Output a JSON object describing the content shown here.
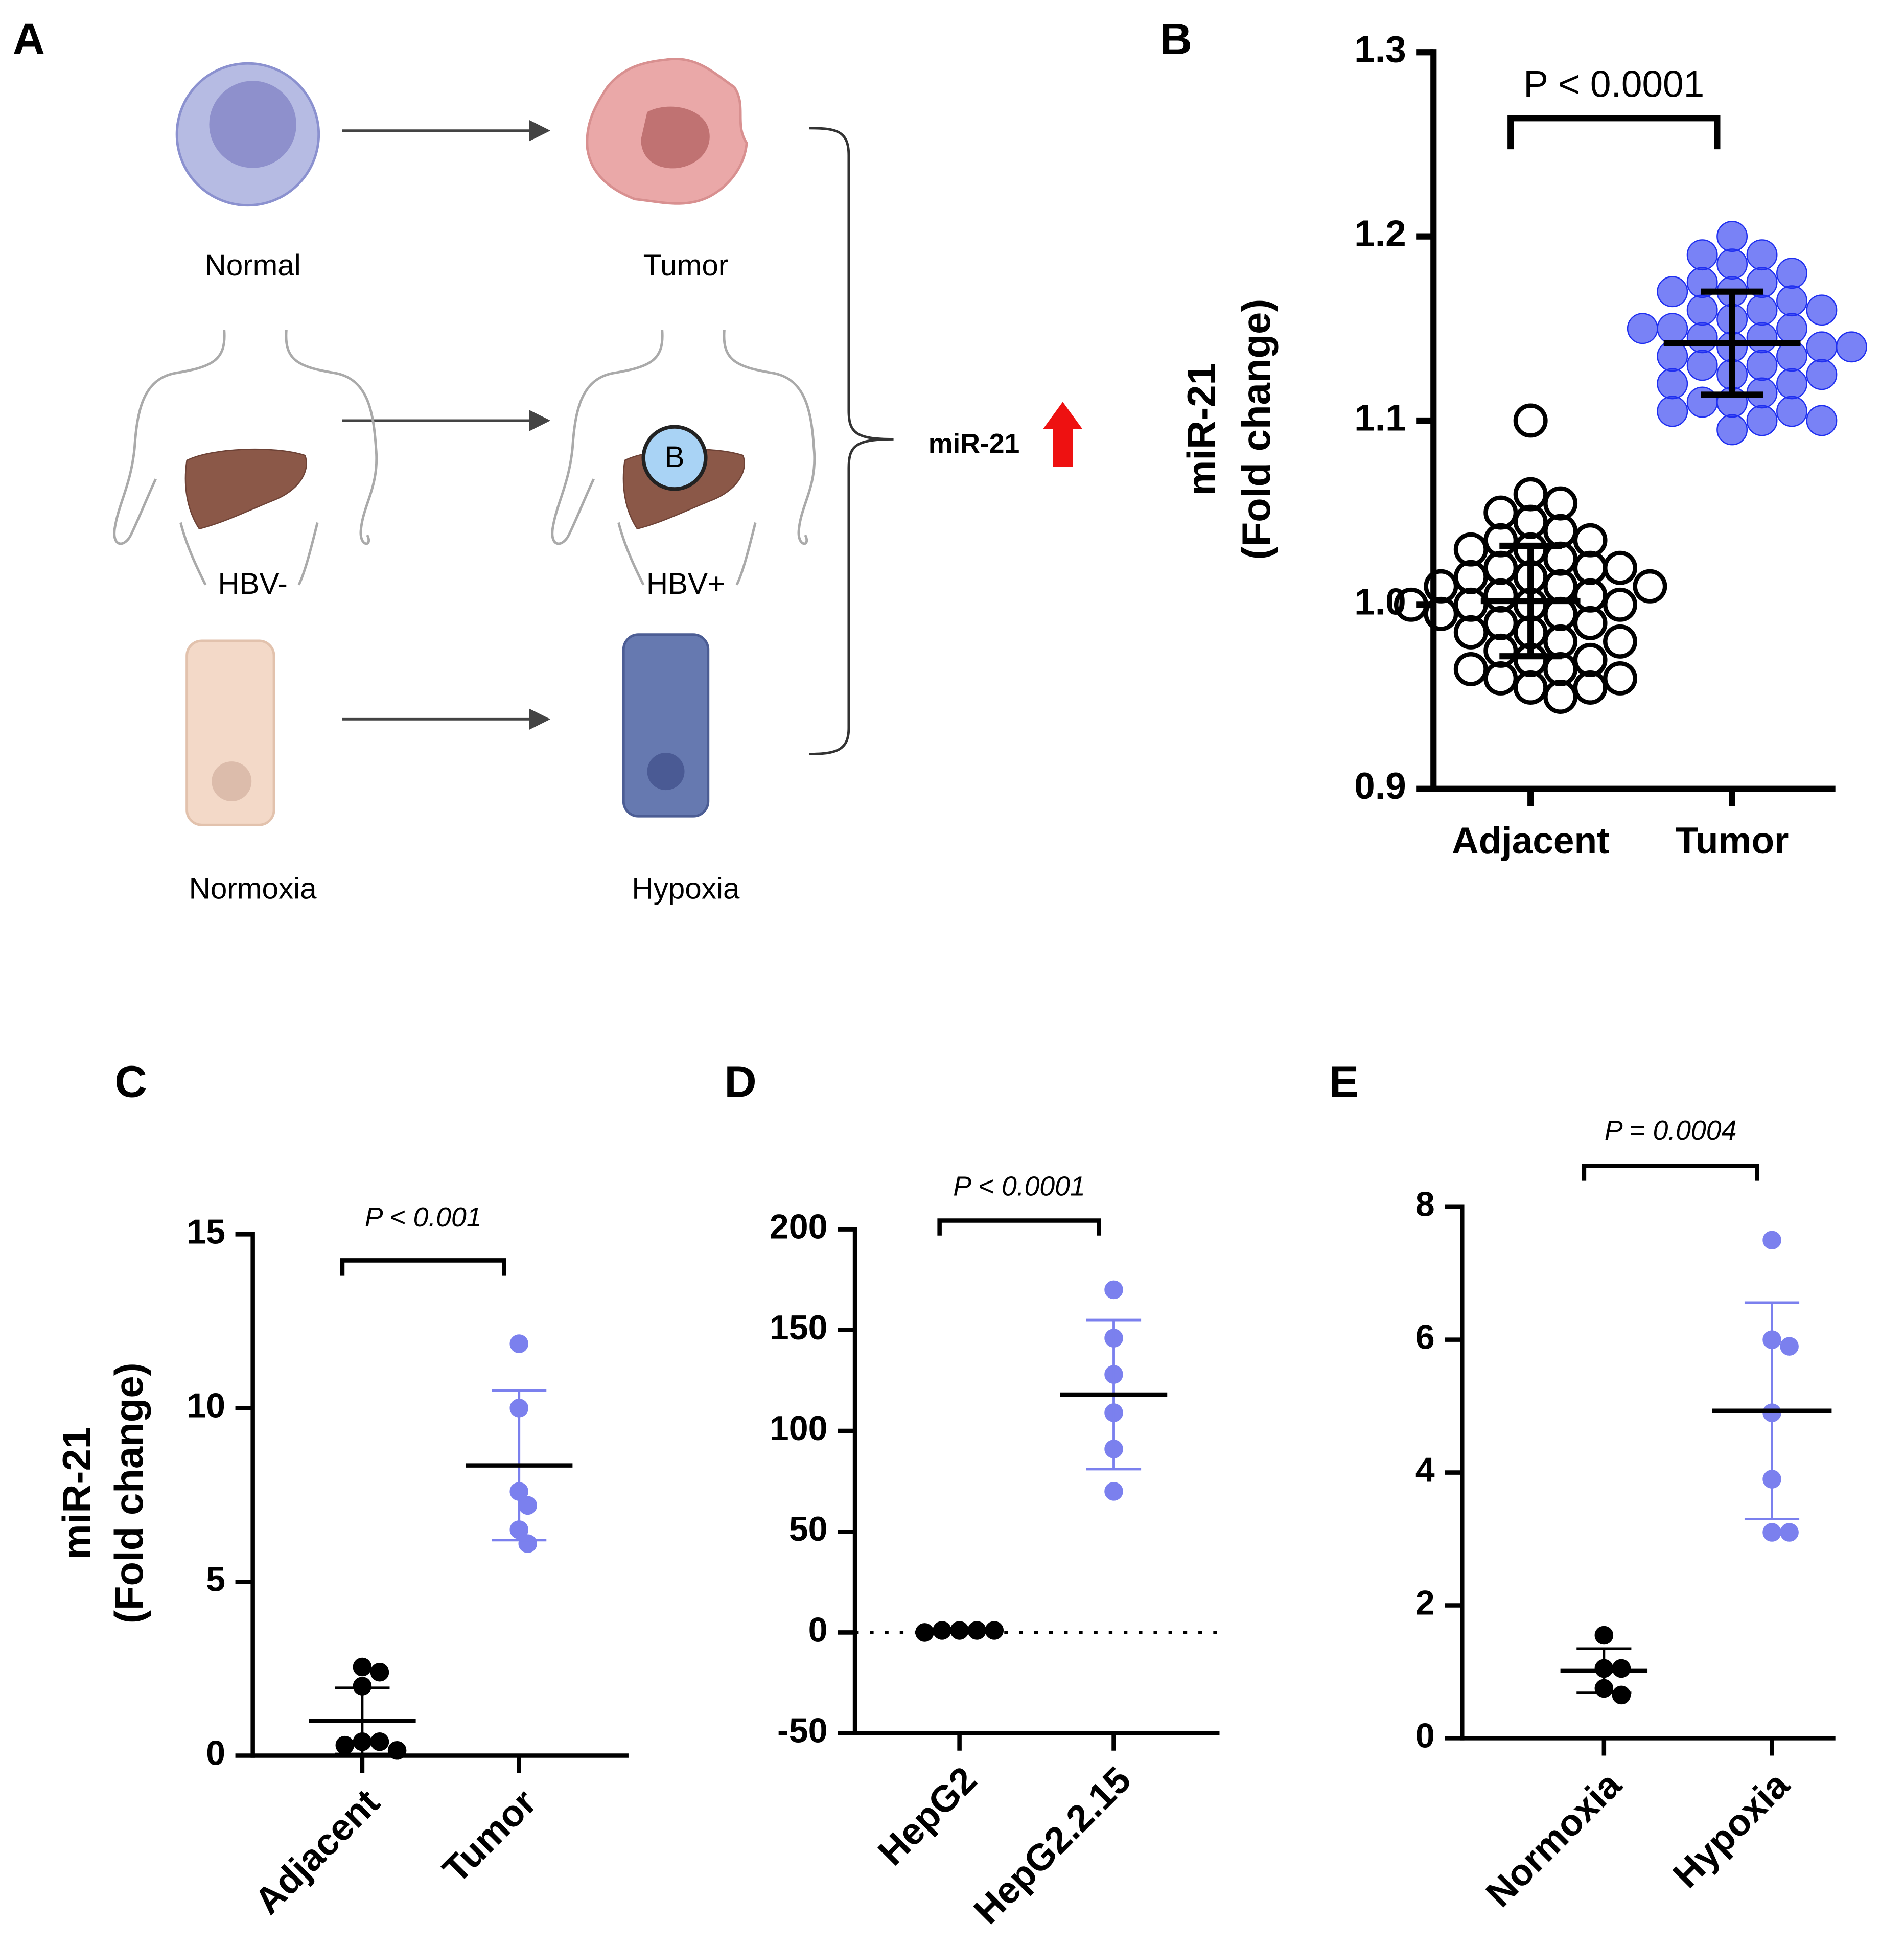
{
  "diagram": {
    "panel": "A",
    "labels": [
      "Normal",
      "Tumor",
      "HBV-",
      "HBV+",
      "Normoxia",
      "Hypoxia"
    ],
    "virus": "B",
    "result": "miR-21"
  },
  "chart_data": [
    {
      "type": "dot",
      "panel": "B",
      "ylabel": [
        "miR-21",
        "(Fold change)"
      ],
      "annotation": "P < 0.0001",
      "categories": [
        "Adjacent",
        "Tumor"
      ],
      "colors": [
        "#000000",
        "#1f2ff0"
      ],
      "filled": [
        false,
        true
      ],
      "points": [
        [
          1.1,
          1.06,
          1.055,
          1.05,
          1.045,
          1.04,
          1.035,
          1.035,
          1.03,
          1.03,
          1.025,
          1.02,
          1.02,
          1.02,
          1.015,
          1.015,
          1.01,
          1.01,
          1.01,
          1.005,
          1.005,
          1.0,
          1.0,
          1.0,
          1.0,
          0.995,
          0.995,
          0.99,
          0.99,
          0.985,
          0.985,
          0.98,
          0.98,
          0.975,
          0.97,
          0.97,
          0.965,
          0.965,
          0.96,
          0.96,
          0.955,
          0.955,
          0.95
        ],
        [
          1.2,
          1.19,
          1.19,
          1.185,
          1.18,
          1.175,
          1.175,
          1.17,
          1.17,
          1.165,
          1.16,
          1.16,
          1.16,
          1.155,
          1.15,
          1.15,
          1.15,
          1.145,
          1.145,
          1.14,
          1.14,
          1.14,
          1.135,
          1.135,
          1.13,
          1.13,
          1.125,
          1.125,
          1.12,
          1.12,
          1.115,
          1.11,
          1.11,
          1.105,
          1.105,
          1.1,
          1.1,
          1.095
        ]
      ],
      "means": [
        1.002,
        1.142
      ],
      "errors": [
        0.03,
        0.028
      ],
      "ylim": [
        0.9,
        1.3
      ],
      "yticks": [
        0.9,
        {
          "value": 1,
          "label": "1.0"
        },
        1.1,
        1.2,
        1.3
      ]
    },
    {
      "type": "dot",
      "panel": "C",
      "ylabel": [
        "miR-21",
        "(Fold change)"
      ],
      "annotation": "P < 0.001",
      "categories": [
        "Adjacent",
        "Tumor"
      ],
      "colors": [
        "#000000",
        "#7b80ee"
      ],
      "filled": [
        true,
        true
      ],
      "points": [
        [
          2.55,
          2.4,
          2.0,
          0.4,
          0.4,
          0.3,
          0.15
        ],
        [
          11.85,
          10.0,
          7.6,
          7.2,
          6.5,
          6.1
        ]
      ],
      "means": [
        1.0,
        8.35
      ],
      "errors": [
        0.95,
        2.15
      ],
      "ylim": [
        0,
        15
      ],
      "yticks": [
        0,
        5,
        10,
        15
      ]
    },
    {
      "type": "dot",
      "panel": "D",
      "annotation": "P < 0.0001",
      "categories": [
        "HepG2",
        "HepG2.2.15"
      ],
      "colors": [
        "#000000",
        "#7b80ee"
      ],
      "filled": [
        true,
        true
      ],
      "points": [
        [
          1,
          1,
          1,
          1,
          0
        ],
        [
          170,
          146,
          128,
          109,
          91,
          70
        ]
      ],
      "means": [
        1,
        118
      ],
      "errors": [
        0.5,
        37
      ],
      "hline": 0,
      "ylim": [
        -50,
        200
      ],
      "yticks": [
        -50,
        0,
        50,
        100,
        150,
        200
      ]
    },
    {
      "type": "dot",
      "panel": "E",
      "annotation": "P = 0.0004",
      "categories": [
        "Normoxia",
        "Hypoxia"
      ],
      "colors": [
        "#000000",
        "#7b80ee"
      ],
      "filled": [
        true,
        true
      ],
      "points": [
        [
          1.55,
          1.05,
          1.05,
          0.75,
          0.65
        ],
        [
          7.5,
          6.0,
          5.9,
          4.9,
          3.9,
          3.1,
          3.1
        ]
      ],
      "means": [
        1.02,
        4.93
      ],
      "errors": [
        0.33,
        1.63
      ],
      "ylim": [
        0,
        8
      ],
      "yticks": [
        0,
        2,
        4,
        6,
        8
      ]
    }
  ]
}
